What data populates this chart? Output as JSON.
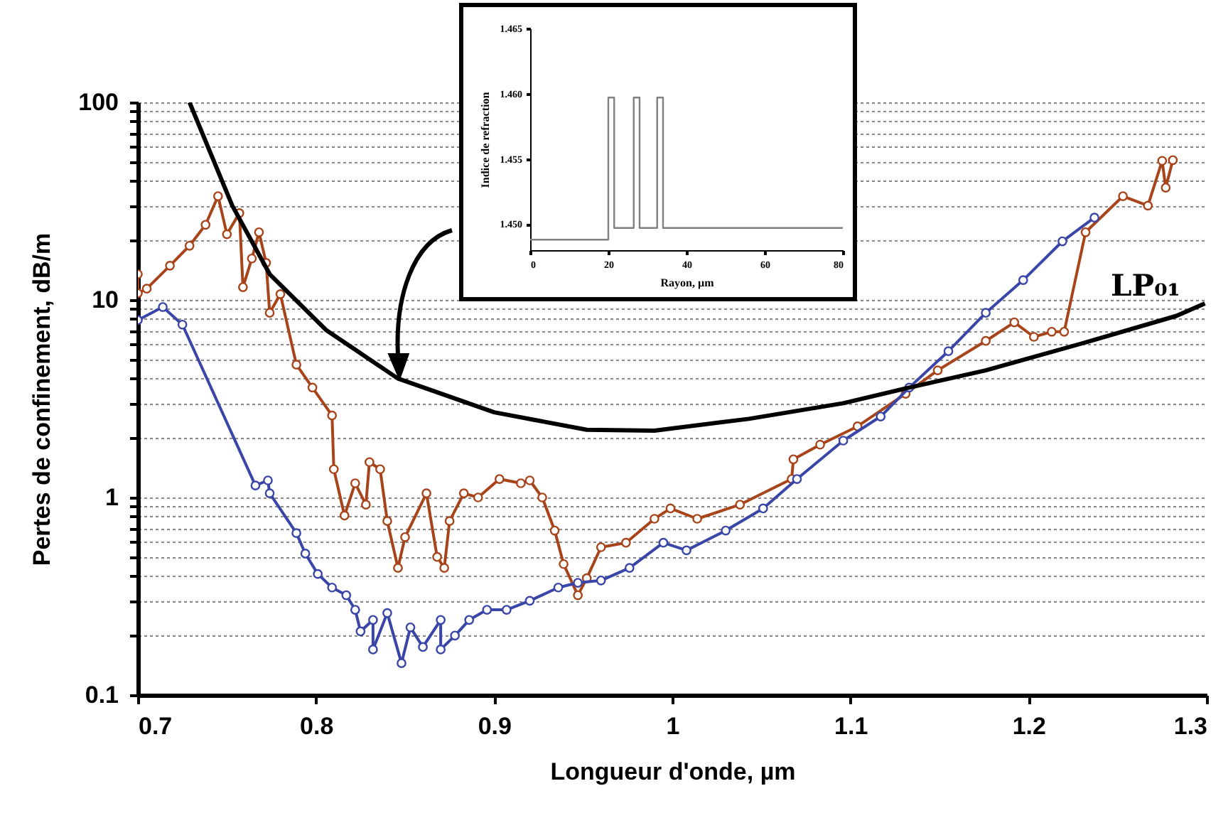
{
  "chart_data": [
    {
      "type": "line",
      "xlabel": "Longueur d'onde, µm",
      "ylabel": "Pertes de confinement, dB/m",
      "log": "y",
      "xlim": [
        0.7,
        1.3
      ],
      "xticks": [
        0.7,
        0.8,
        0.9,
        1,
        1.1,
        1.2,
        1.3
      ],
      "ylim": [
        0.1,
        100
      ],
      "yticks": [
        0.1,
        {
          "value": 0.2,
          "label": null
        },
        {
          "value": 0.3,
          "label": null
        },
        {
          "value": 0.4,
          "label": null
        },
        {
          "value": 0.5,
          "label": null
        },
        {
          "value": 0.6,
          "label": null
        },
        {
          "value": 0.7,
          "label": null
        },
        {
          "value": 0.8,
          "label": null
        },
        {
          "value": 0.9,
          "label": null
        },
        1,
        {
          "value": 2,
          "label": null
        },
        {
          "value": 3,
          "label": null
        },
        {
          "value": 4,
          "label": null
        },
        {
          "value": 5,
          "label": null
        },
        {
          "value": 6,
          "label": null
        },
        {
          "value": 7,
          "label": null
        },
        {
          "value": 8,
          "label": null
        },
        {
          "value": 9,
          "label": null
        },
        10,
        {
          "value": 20,
          "label": null
        },
        {
          "value": 30,
          "label": null
        },
        {
          "value": 40,
          "label": null
        },
        {
          "value": 50,
          "label": null
        },
        {
          "value": 60,
          "label": null
        },
        {
          "value": 70,
          "label": null
        },
        {
          "value": 80,
          "label": null
        },
        {
          "value": 90,
          "label": null
        },
        100
      ],
      "grid": "y",
      "marker": "circle",
      "series": [
        {
          "color": "#a8441a",
          "x": [
            0.7,
            0.7,
            0.705,
            0.718,
            0.729,
            0.738,
            0.745,
            0.75,
            0.757,
            0.759,
            0.764,
            0.768,
            0.772,
            0.774,
            0.78,
            0.789,
            0.798,
            0.809,
            0.81,
            0.816,
            0.822,
            0.828,
            0.83,
            0.836,
            0.84,
            0.846,
            0.85,
            0.862,
            0.868,
            0.872,
            0.875,
            0.883,
            0.891,
            0.903,
            0.915,
            0.92,
            0.927,
            0.934,
            0.939,
            0.947,
            0.952,
            0.96,
            0.974,
            0.99,
            0.999,
            1.014,
            1.038,
            1.067,
            1.068,
            1.083,
            1.104,
            1.131,
            1.149,
            1.176,
            1.192,
            1.203,
            1.213,
            1.22,
            1.232,
            1.253,
            1.267,
            1.275,
            1.277,
            1.281
          ],
          "values": [
            13.5,
            10.8,
            11.4,
            14.9,
            18.8,
            24,
            33.5,
            21.5,
            27.5,
            11.6,
            16.2,
            22,
            15.4,
            8.6,
            10.7,
            4.7,
            3.6,
            2.6,
            1.39,
            0.81,
            1.18,
            0.92,
            1.51,
            1.39,
            0.76,
            0.44,
            0.63,
            1.05,
            0.5,
            0.44,
            0.76,
            1.05,
            1,
            1.24,
            1.18,
            1.22,
            1,
            0.68,
            0.46,
            0.32,
            0.39,
            0.56,
            0.59,
            0.78,
            0.88,
            0.78,
            0.92,
            1.24,
            1.56,
            1.85,
            2.29,
            3.35,
            4.4,
            6.2,
            7.7,
            6.5,
            6.9,
            6.9,
            22,
            33.5,
            30,
            50.6,
            37,
            51
          ]
        },
        {
          "color": "#3a45a8",
          "x": [
            0.7,
            0.714,
            0.725,
            0.766,
            0.773,
            0.774,
            0.789,
            0.794,
            0.801,
            0.809,
            0.817,
            0.822,
            0.825,
            0.832,
            0.832,
            0.84,
            0.848,
            0.853,
            0.86,
            0.87,
            0.87,
            0.878,
            0.886,
            0.896,
            0.907,
            0.92,
            0.936,
            0.947,
            0.96,
            0.976,
            0.995,
            1.008,
            1.03,
            1.051,
            1.07,
            1.096,
            1.117,
            1.133,
            1.155,
            1.176,
            1.197,
            1.219,
            1.237
          ],
          "values": [
            7.9,
            9.2,
            7.5,
            1.15,
            1.22,
            1.05,
            0.66,
            0.52,
            0.41,
            0.35,
            0.32,
            0.27,
            0.21,
            0.24,
            0.17,
            0.26,
            0.145,
            0.22,
            0.175,
            0.24,
            0.17,
            0.2,
            0.24,
            0.27,
            0.27,
            0.3,
            0.35,
            0.37,
            0.38,
            0.44,
            0.59,
            0.54,
            0.68,
            0.88,
            1.24,
            1.94,
            2.57,
            3.6,
            5.5,
            8.6,
            12.6,
            19.8,
            26.1
          ]
        },
        {
          "name": "LP₀₁",
          "color": "#000000",
          "marker": "none",
          "x": [
            0.729,
            0.753,
            0.774,
            0.806,
            0.846,
            0.9,
            0.952,
            0.99,
            1.043,
            1.096,
            1.133,
            1.176,
            1.235,
            1.283,
            1.299
          ],
          "values": [
            100,
            30,
            13.5,
            7,
            4,
            2.7,
            2.2,
            2.18,
            2.5,
            3,
            3.6,
            4.4,
            6.2,
            8.3,
            9.6
          ]
        }
      ]
    },
    {
      "type": "line",
      "xlabel": "Rayon, µm",
      "ylabel": "Indice de refraction",
      "xlim": [
        0,
        80
      ],
      "xticks": [
        0,
        20,
        40,
        60,
        80
      ],
      "ylim": [
        1.448,
        1.465
      ],
      "yticks": [
        {
          "value": 1.45,
          "label": "1.450"
        },
        {
          "value": 1.455,
          "label": "1.455"
        },
        {
          "value": 1.46,
          "label": "1.460"
        },
        {
          "value": 1.465,
          "label": "1.465"
        }
      ],
      "series": [
        {
          "color": "#808080",
          "x": [
            0,
            20,
            20,
            21.5,
            21.5,
            26.5,
            26.5,
            28,
            28,
            32.5,
            32.5,
            34,
            34,
            80
          ],
          "values": [
            1.4488,
            1.4488,
            1.4597,
            1.4597,
            1.4497,
            1.4497,
            1.4597,
            1.4597,
            1.4497,
            1.4497,
            1.4597,
            1.4597,
            1.4497,
            1.4497
          ]
        }
      ]
    }
  ]
}
